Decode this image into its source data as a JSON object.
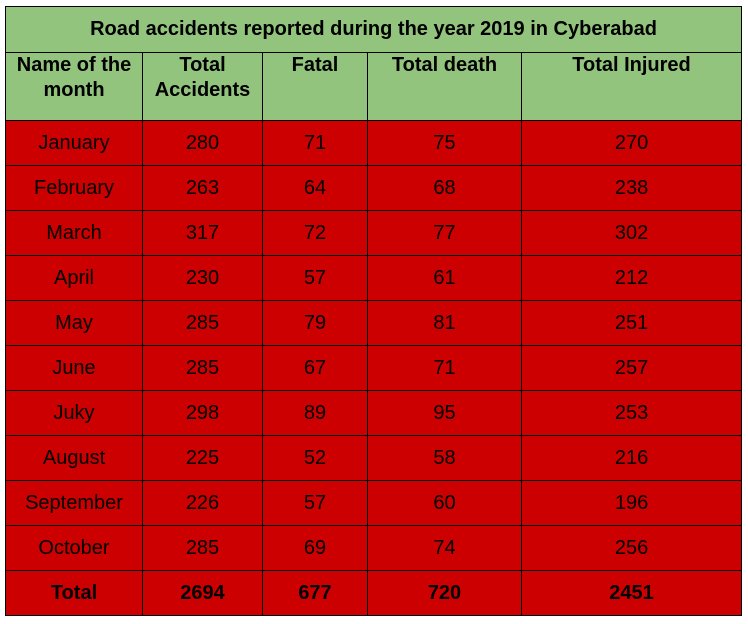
{
  "chart_data": {
    "type": "table",
    "title": "Road accidents reported during the year 2019 in Cyberabad",
    "columns": [
      "Name of the month",
      "Total Accidents",
      "Fatal",
      "Total death",
      "Total Injured"
    ],
    "rows": [
      [
        "January",
        "280",
        "71",
        "75",
        "270"
      ],
      [
        "February",
        "263",
        "64",
        "68",
        "238"
      ],
      [
        "March",
        "317",
        "72",
        "77",
        "302"
      ],
      [
        "April",
        "230",
        "57",
        "61",
        "212"
      ],
      [
        "May",
        "285",
        "79",
        "81",
        "251"
      ],
      [
        "June",
        "285",
        "67",
        "71",
        "257"
      ],
      [
        "Juky",
        "298",
        "89",
        "95",
        "253"
      ],
      [
        "August",
        "225",
        "52",
        "58",
        "216"
      ],
      [
        "September",
        "226",
        "57",
        "60",
        "196"
      ],
      [
        "October",
        "285",
        "69",
        "74",
        "256"
      ]
    ],
    "total_row": [
      "Total",
      "2694",
      "677",
      "720",
      "2451"
    ]
  },
  "colors": {
    "header_bg": "#93c47d",
    "body_bg": "#cc0000",
    "border": "#000000"
  }
}
